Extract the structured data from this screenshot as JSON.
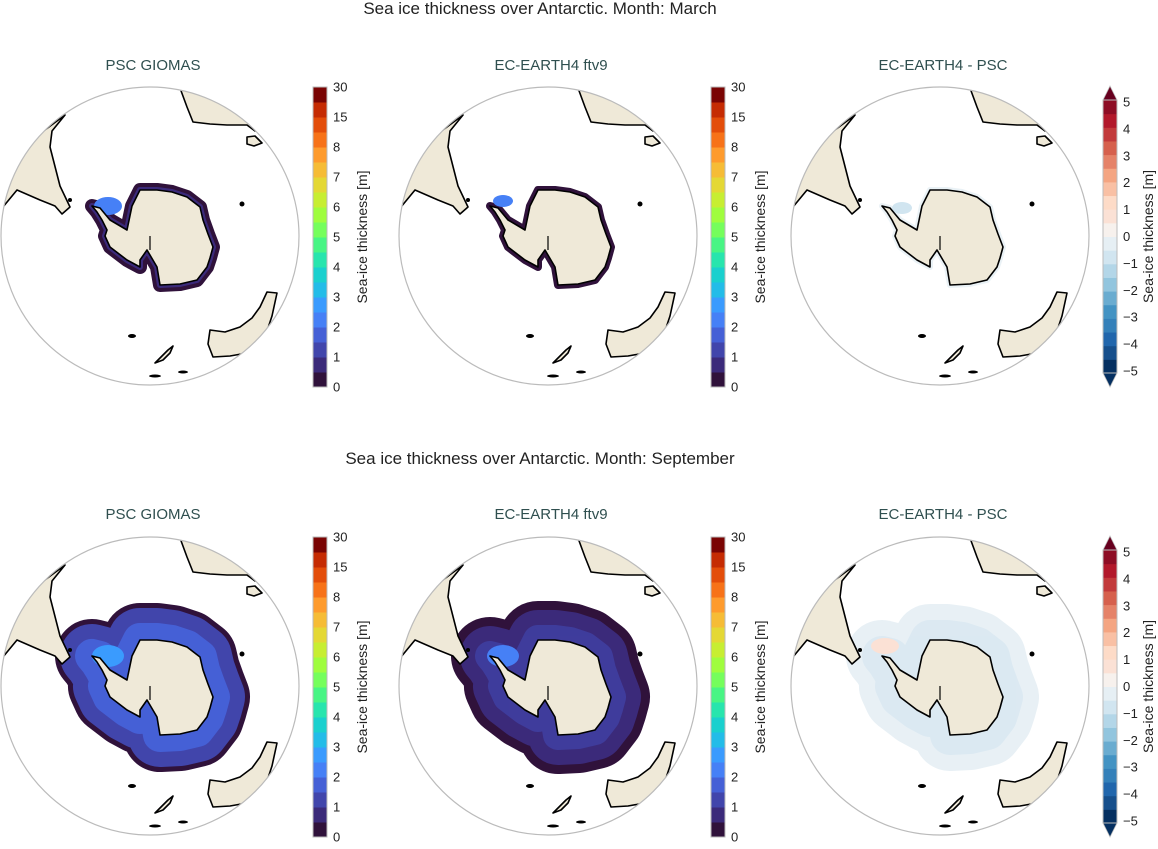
{
  "figure": {
    "rows": [
      {
        "suptitle": "Sea ice thickness over Antarctic. Month: March",
        "month": "March"
      },
      {
        "suptitle": "Sea ice thickness over Antarctic. Month: September",
        "month": "September"
      }
    ]
  },
  "colors": {
    "land": "#efe9d8",
    "coast": "#000000",
    "map_border": "#bbbbbb",
    "title": "#2f4f4f"
  },
  "colorbars": {
    "sequential": {
      "label": "Sea-ice thickness [m]",
      "colormap": "turbo",
      "ticks": [
        "0",
        "1",
        "2",
        "3",
        "4",
        "5",
        "6",
        "7",
        "8",
        "15",
        "30"
      ],
      "bins": [
        "#30123b",
        "#3b2a7a",
        "#4145ab",
        "#4560d6",
        "#4680f6",
        "#3a9bfe",
        "#23bce8",
        "#1ad0ce",
        "#28e5ad",
        "#48f584",
        "#75fe5c",
        "#9ffd3e",
        "#c7ee32",
        "#e4d835",
        "#f6bc36",
        "#fe9b2d",
        "#f77218",
        "#e34d0a",
        "#c52b03",
        "#7a0403"
      ],
      "extend": "neither"
    },
    "diverging": {
      "label": "Sea-ice thickness [m]",
      "colormap": "RdBu_r",
      "ticks": [
        "5",
        "4",
        "3",
        "2",
        "1",
        "0",
        "−1",
        "−2",
        "−3",
        "−4",
        "−5"
      ],
      "bins": [
        "#053061",
        "#164f8c",
        "#2166ac",
        "#3480b9",
        "#4393c3",
        "#6aacd0",
        "#92c5de",
        "#b3d6e8",
        "#d1e5f0",
        "#e6eff4",
        "#f7f1ed",
        "#fbe1d5",
        "#fddbc7",
        "#f9c0a4",
        "#f4a582",
        "#e58268",
        "#d6604d",
        "#c23a3b",
        "#b2182b",
        "#8e0d25"
      ],
      "extend": "both",
      "over": "#67001f",
      "under": "#053061"
    }
  },
  "chart_data": [
    {
      "type": "heatmap",
      "row": "March",
      "title": "PSC GIOMAS",
      "colorbar": "sequential",
      "projection": "south-polar-stereographic"
    },
    {
      "type": "heatmap",
      "row": "March",
      "title": "EC-EARTH4 ftv9",
      "colorbar": "sequential",
      "projection": "south-polar-stereographic"
    },
    {
      "type": "heatmap",
      "row": "March",
      "title": "EC-EARTH4 -  PSC",
      "colorbar": "diverging",
      "projection": "south-polar-stereographic"
    },
    {
      "type": "heatmap",
      "row": "September",
      "title": "PSC GIOMAS",
      "colorbar": "sequential",
      "projection": "south-polar-stereographic"
    },
    {
      "type": "heatmap",
      "row": "September",
      "title": "EC-EARTH4 ftv9",
      "colorbar": "sequential",
      "projection": "south-polar-stereographic"
    },
    {
      "type": "heatmap",
      "row": "September",
      "title": "EC-EARTH4 -  PSC",
      "colorbar": "diverging",
      "projection": "south-polar-stereographic"
    }
  ]
}
